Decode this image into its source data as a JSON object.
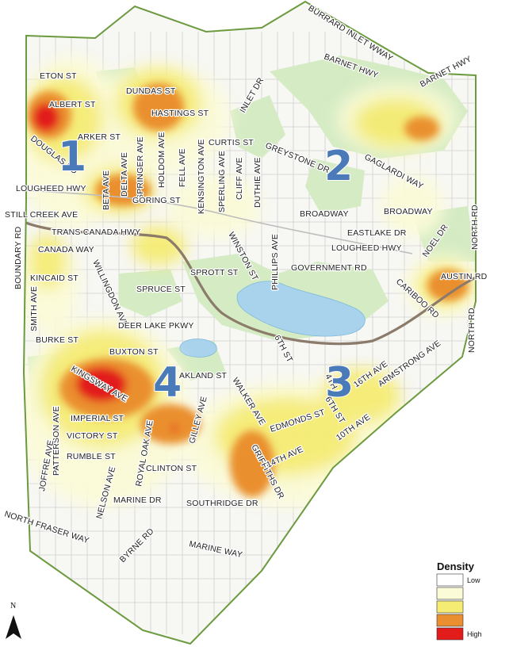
{
  "colors": {
    "park": "#d4ebc3",
    "water": "#a9d3ec",
    "boundary": "#6b9a3f",
    "highway": "#8c7b6a",
    "street_grid": "#c9c9c9",
    "density_low": "#fbfbd8",
    "density_mid": "#f5ec73",
    "density_midhigh": "#f4d35a",
    "density_high": "#ea8f2f",
    "density_max": "#e21b1b",
    "zone_number": "#4a7ab8"
  },
  "streets": {
    "burrard_inlet_wway": "BURRARD INLET WWAY",
    "barnet_hwy_1": "BARNET HWY",
    "barnet_hwy_2": "BARNET HWY",
    "eton_st": "ETON ST",
    "dundas_st": "DUNDAS ST",
    "albert_st": "ALBERT ST",
    "hastings_st": "HASTINGS ST",
    "inlet_dr": "INLET DR",
    "parker_st": "ARKER ST",
    "curtis_st": "CURTIS ST",
    "douglas_rd": "DOUGLAS RD",
    "beta_ave": "BETA AVE",
    "delta_ave": "DELTA AVE",
    "springer_ave": "SPRINGER AVE",
    "holdom_ave": "HOLDOM AVE",
    "fell_ave": "FELL AVE",
    "kensington_ave": "KENSINGTON AVE",
    "sperling_ave": "SPERLING AVE",
    "cliff_ave": "CLIFF AVE",
    "duthie_ave": "DUTHIE AVE",
    "greystone_dr": "GREYSTONE DR",
    "gaglardi_way": "GAGLARDI WAY",
    "lougheed_hwy_w": "LOUGHEED HWY",
    "goring_st": "GORING ST",
    "broadway_1": "BROADWAY",
    "broadway_2": "BROADWAY",
    "still_creek_ave": "STILL CREEK AVE",
    "boundary_rd": "BOUNDARY RD",
    "north_rd_1": "NORTH RD",
    "north_rd_2": "NORTH RD",
    "trans_canada_hwy": "TRANS CANADA HWY",
    "eastlake_dr": "EASTLAKE DR",
    "noel_dr": "NOEL DR",
    "canada_way": "CANADA WAY",
    "winston_st": "WINSTON ST",
    "phillips_ave": "PHILLIPS AVE",
    "lougheed_hwy_e": "LOUGHEED HWY",
    "government_rd": "GOVERNMENT RD",
    "kincaid_st": "KINCAID ST",
    "sprott_st": "SPROTT ST",
    "austin_rd": "AUSTIN RD",
    "cariboo_rd": "CARIBOO RD",
    "smith_ave": "SMITH AVE",
    "willingdon_ave": "WILLINGDON AVE",
    "spruce_st": "SPRUCE ST",
    "deer_lake_pkwy": "DEER LAKE PKWY",
    "burke_st": "BURKE ST",
    "buxton_st": "BUXTON ST",
    "sixth_st_n": "6TH ST",
    "armstrong_ave": "ARMSTRONG AVE",
    "kingsway_ave": "KINGSWAY AVE",
    "oakland_st": "AKLAND ST",
    "walker_ave": "WALKER AVE",
    "fourth_st": "4TH S",
    "sixteenth_ave": "16TH AVE",
    "patterson_ave": "PATTERSON AVE",
    "imperial_st": "IMPERIAL ST",
    "edmonds_st": "EDMONDS ST",
    "sixth_st_s": "6TH ST",
    "tenth_ave": "10TH AVE",
    "victory_st": "VICTORY ST",
    "royal_oak_ave": "ROYAL OAK AVE",
    "gilley_ave": "GILLEY AVE",
    "griffiths_dr": "GRIFFITHS DR",
    "fourteenth_ave": "14TH AVE",
    "joffre_ave": "JOFFRE AVE",
    "rumble_st": "RUMBLE ST",
    "nelson_ave": "NELSON AVE",
    "clinton_st": "CLINTON ST",
    "marine_dr": "MARINE DR",
    "southridge_dr": "SOUTHRIDGE DR",
    "north_fraser_way": "NORTH FRASER WAY",
    "byrne_rd": "BYRNE RD",
    "marine_way": "MARINE WAY"
  },
  "zones": [
    "1",
    "2",
    "3",
    "4"
  ],
  "legend": {
    "title": "Density",
    "low_label": "Low",
    "high_label": "High",
    "swatch_colors": [
      "#ffffff",
      "#fbfbd8",
      "#f5ec73",
      "#ea8f2f",
      "#e21b1b"
    ]
  },
  "north_arrow": {
    "label": "N",
    "icon": "north-arrow-icon"
  }
}
